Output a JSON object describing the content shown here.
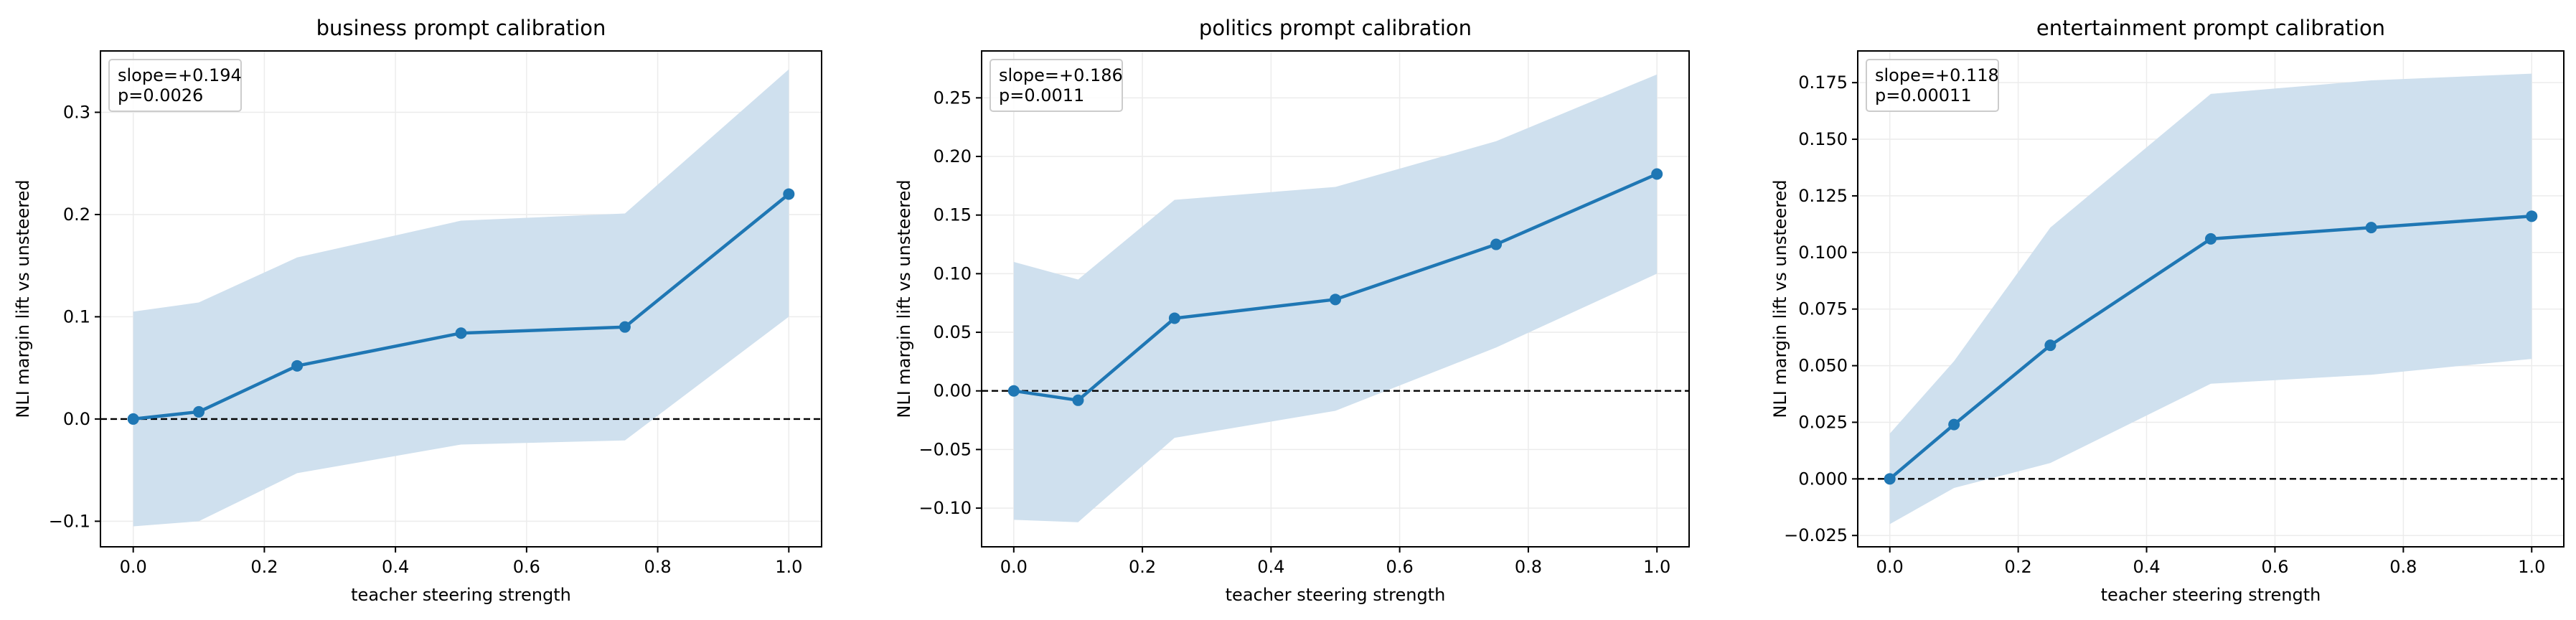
{
  "chart_data": [
    {
      "type": "line",
      "title": "business prompt calibration",
      "xlabel": "teacher steering strength",
      "ylabel": "NLI margin lift vs unsteered",
      "xlim": [
        -0.05,
        1.05
      ],
      "ylim": [
        -0.125,
        0.36
      ],
      "xticks": [
        0.0,
        0.2,
        0.4,
        0.6,
        0.8,
        1.0
      ],
      "xtick_labels": [
        "0.0",
        "0.2",
        "0.4",
        "0.6",
        "0.8",
        "1.0"
      ],
      "yticks": [
        -0.1,
        0.0,
        0.1,
        0.2,
        0.3
      ],
      "ytick_labels": [
        "−0.1",
        "0.0",
        "0.1",
        "0.2",
        "0.3"
      ],
      "x": [
        0.0,
        0.1,
        0.25,
        0.5,
        0.75,
        1.0
      ],
      "y": [
        0.0,
        0.007,
        0.052,
        0.084,
        0.09,
        0.22
      ],
      "ci_lower": [
        -0.105,
        -0.1,
        -0.053,
        -0.025,
        -0.021,
        0.1
      ],
      "ci_upper": [
        0.105,
        0.114,
        0.158,
        0.194,
        0.201,
        0.342
      ],
      "zero_line": 0,
      "annotation": [
        "slope=+0.194",
        "p=0.0026"
      ],
      "grid": true
    },
    {
      "type": "line",
      "title": "politics prompt calibration",
      "xlabel": "teacher steering strength",
      "ylabel": "NLI margin lift vs unsteered",
      "xlim": [
        -0.05,
        1.05
      ],
      "ylim": [
        -0.133,
        0.29
      ],
      "xticks": [
        0.0,
        0.2,
        0.4,
        0.6,
        0.8,
        1.0
      ],
      "xtick_labels": [
        "0.0",
        "0.2",
        "0.4",
        "0.6",
        "0.8",
        "1.0"
      ],
      "yticks": [
        -0.1,
        -0.05,
        0.0,
        0.05,
        0.1,
        0.15,
        0.2,
        0.25
      ],
      "ytick_labels": [
        "−0.10",
        "−0.05",
        "0.00",
        "0.05",
        "0.10",
        "0.15",
        "0.20",
        "0.25"
      ],
      "x": [
        0.0,
        0.1,
        0.25,
        0.5,
        0.75,
        1.0
      ],
      "y": [
        0.0,
        -0.008,
        0.062,
        0.078,
        0.125,
        0.185
      ],
      "ci_lower": [
        -0.11,
        -0.112,
        -0.04,
        -0.017,
        0.037,
        0.1
      ],
      "ci_upper": [
        0.11,
        0.095,
        0.163,
        0.174,
        0.213,
        0.27
      ],
      "zero_line": 0,
      "annotation": [
        "slope=+0.186",
        "p=0.0011"
      ],
      "grid": true
    },
    {
      "type": "line",
      "title": "entertainment prompt calibration",
      "xlabel": "teacher steering strength",
      "ylabel": "NLI margin lift vs unsteered",
      "xlim": [
        -0.05,
        1.05
      ],
      "ylim": [
        -0.03,
        0.189
      ],
      "xticks": [
        0.0,
        0.2,
        0.4,
        0.6,
        0.8,
        1.0
      ],
      "xtick_labels": [
        "0.0",
        "0.2",
        "0.4",
        "0.6",
        "0.8",
        "1.0"
      ],
      "yticks": [
        -0.025,
        0.0,
        0.025,
        0.05,
        0.075,
        0.1,
        0.125,
        0.15,
        0.175
      ],
      "ytick_labels": [
        "−0.025",
        "0.000",
        "0.025",
        "0.050",
        "0.075",
        "0.100",
        "0.125",
        "0.150",
        "0.175"
      ],
      "x": [
        0.0,
        0.1,
        0.25,
        0.5,
        0.75,
        1.0
      ],
      "y": [
        0.0,
        0.024,
        0.059,
        0.106,
        0.111,
        0.116
      ],
      "ci_lower": [
        -0.02,
        -0.004,
        0.007,
        0.042,
        0.046,
        0.053
      ],
      "ci_upper": [
        0.02,
        0.052,
        0.111,
        0.17,
        0.176,
        0.179
      ],
      "zero_line": 0,
      "annotation": [
        "slope=+0.118",
        "p=0.00011"
      ],
      "grid": true
    }
  ],
  "colors": {
    "line": "#1f77b4",
    "band": "#cfe0ee",
    "grid": "#ececec",
    "axis": "#000000",
    "zero_line": "#000000",
    "annotation_border": "#cccccc"
  }
}
